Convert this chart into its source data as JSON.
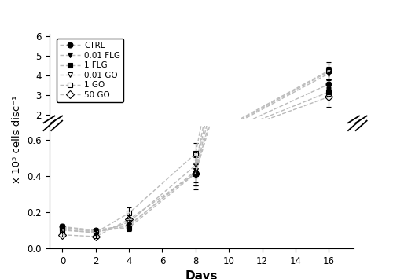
{
  "days": [
    0,
    2,
    4,
    8,
    16
  ],
  "series": [
    {
      "label": "CTRL",
      "marker": "o",
      "fillstyle": "full",
      "color": "black",
      "values": [
        0.12,
        0.1,
        0.13,
        0.42,
        3.55
      ],
      "errors": [
        0.015,
        0.01,
        0.02,
        0.07,
        0.25
      ]
    },
    {
      "label": "0.01 FLG",
      "marker": "v",
      "fillstyle": "full",
      "color": "black",
      "values": [
        0.115,
        0.09,
        0.125,
        0.43,
        4.1
      ],
      "errors": [
        0.015,
        0.01,
        0.015,
        0.08,
        0.35
      ]
    },
    {
      "label": "1 FLG",
      "marker": "s",
      "fillstyle": "full",
      "color": "black",
      "values": [
        0.115,
        0.095,
        0.115,
        0.415,
        3.15
      ],
      "errors": [
        0.012,
        0.01,
        0.02,
        0.09,
        0.2
      ]
    },
    {
      "label": "0.01 GO",
      "marker": "v",
      "fillstyle": "none",
      "color": "black",
      "values": [
        0.105,
        0.085,
        0.145,
        0.46,
        4.2
      ],
      "errors": [
        0.012,
        0.008,
        0.025,
        0.07,
        0.4
      ]
    },
    {
      "label": "1 GO",
      "marker": "s",
      "fillstyle": "none",
      "color": "black",
      "values": [
        0.1,
        0.088,
        0.195,
        0.525,
        4.25
      ],
      "errors": [
        0.013,
        0.009,
        0.03,
        0.06,
        0.45
      ]
    },
    {
      "label": "50 GO",
      "marker": "D",
      "fillstyle": "none",
      "color": "black",
      "values": [
        0.075,
        0.065,
        0.16,
        0.415,
        2.9
      ],
      "errors": [
        0.01,
        0.008,
        0.025,
        0.05,
        0.5
      ]
    }
  ],
  "line_color": "#bbbbbb",
  "line_style": "--",
  "xlabel": "Days",
  "ylabel": "x 10⁵ cells disc⁻¹",
  "lower_ylim": [
    0.0,
    0.68
  ],
  "upper_ylim": [
    1.75,
    6.15
  ],
  "xticks": [
    0,
    2,
    4,
    6,
    8,
    10,
    12,
    14,
    16
  ],
  "lower_yticks": [
    0.0,
    0.2,
    0.4,
    0.6
  ],
  "upper_yticks": [
    2.0,
    3.0,
    4.0,
    5.0,
    6.0
  ],
  "markersize": 5,
  "linewidth": 1.0,
  "elinewidth": 0.8,
  "capsize": 2.0,
  "xlim": [
    -0.8,
    17.5
  ]
}
